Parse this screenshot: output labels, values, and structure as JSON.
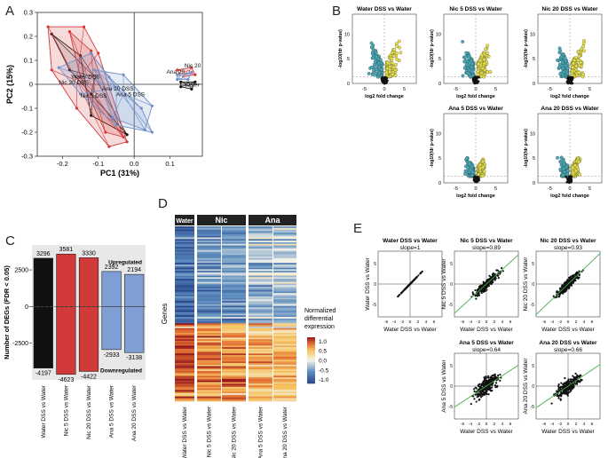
{
  "panels": {
    "A": "A",
    "B": "B",
    "C": "C",
    "D": "D",
    "E": "E"
  },
  "colors": {
    "red": "#d23a3a",
    "blue": "#6f8fc8",
    "black": "#111111",
    "cyan": "#46a9b8",
    "yellow": "#e6e04a",
    "green": "#3fae49"
  },
  "chart_data": [
    {
      "id": "A",
      "type": "scatter",
      "title": "",
      "xlabel": "PC1 (31%)",
      "ylabel": "PC2 (15%)",
      "xlim": [
        -0.27,
        0.19
      ],
      "ylim": [
        -0.3,
        0.3
      ],
      "xticks": [
        "-0.2",
        "-0.1",
        "0.0",
        "0.1"
      ],
      "xtick_values": [
        -0.2,
        -0.1,
        0.0,
        0.1
      ],
      "yticks": [
        "-0.3",
        "-0.2",
        "-0.1",
        "0",
        "0.1",
        "0.2",
        "0.3"
      ],
      "ytick_values": [
        -0.3,
        -0.2,
        -0.1,
        0,
        0.1,
        0.2,
        0.3
      ],
      "groups": [
        {
          "name": "Water DSS",
          "color": "black",
          "centroid": [
            -0.11,
            0.03
          ],
          "hull": [
            [
              -0.23,
              0.21
            ],
            [
              -0.18,
              0.06
            ],
            [
              -0.12,
              -0.04
            ],
            [
              -0.02,
              -0.21
            ],
            [
              -0.12,
              -0.13
            ],
            [
              -0.15,
              0.12
            ]
          ]
        },
        {
          "name": "Nic 20 DSS",
          "color": "red",
          "centroid": [
            -0.16,
            0.015
          ],
          "hull": [
            [
              -0.24,
              0.24
            ],
            [
              -0.14,
              0.24
            ],
            [
              -0.1,
              0.13
            ],
            [
              -0.02,
              -0.24
            ],
            [
              -0.07,
              -0.26
            ],
            [
              -0.16,
              -0.1
            ],
            [
              -0.23,
              0.06
            ]
          ]
        },
        {
          "name": "Nic 5 DSS",
          "color": "red",
          "centroid": [
            -0.11,
            -0.04
          ],
          "hull": [
            [
              -0.18,
              0.22
            ],
            [
              -0.12,
              0.14
            ],
            [
              -0.03,
              -0.22
            ],
            [
              -0.08,
              -0.2
            ],
            [
              -0.15,
              0.03
            ]
          ]
        },
        {
          "name": "Ana 20 DSS",
          "color": "blue",
          "centroid": [
            -0.05,
            -0.015
          ],
          "hull": [
            [
              -0.21,
              0.07
            ],
            [
              -0.12,
              0.13
            ],
            [
              -0.07,
              0.03
            ],
            [
              0.02,
              -0.1
            ],
            [
              0.05,
              -0.2
            ],
            [
              -0.05,
              -0.17
            ],
            [
              -0.15,
              -0.04
            ]
          ]
        },
        {
          "name": "Ana 5 DSS",
          "color": "blue",
          "centroid": [
            -0.03,
            -0.04
          ],
          "hull": [
            [
              -0.11,
              0.06
            ],
            [
              -0.03,
              0.04
            ],
            [
              0.05,
              -0.09
            ],
            [
              0.03,
              -0.19
            ],
            [
              -0.06,
              -0.14
            ]
          ]
        },
        {
          "name": "Nic 20",
          "color": "red",
          "centroid": [
            0.15,
            0.05
          ],
          "hull": [
            [
              0.12,
              0.06
            ],
            [
              0.16,
              0.07
            ],
            [
              0.17,
              0.04
            ],
            [
              0.13,
              0.03
            ]
          ]
        },
        {
          "name": "Ana 20",
          "color": "blue",
          "centroid": [
            0.13,
            0.03
          ],
          "hull": [
            [
              0.12,
              0.04
            ],
            [
              0.16,
              0.05
            ],
            [
              0.15,
              0.02
            ],
            [
              0.12,
              0.02
            ]
          ]
        },
        {
          "name": "Water",
          "color": "black",
          "centroid": [
            0.15,
            0.0
          ],
          "hull": [
            [
              0.13,
              0.01
            ],
            [
              0.17,
              0.01
            ],
            [
              0.16,
              -0.02
            ],
            [
              0.13,
              -0.01
            ]
          ]
        }
      ],
      "labels": [
        {
          "text": "Water DSS",
          "at": [
            -0.175,
            0.025
          ]
        },
        {
          "text": "Nic 20 DSS",
          "at": [
            -0.21,
            0.0
          ]
        },
        {
          "text": "Ana 20 DSS",
          "at": [
            -0.09,
            -0.025
          ]
        },
        {
          "text": "Ana 5 DSS",
          "at": [
            -0.05,
            -0.05
          ]
        },
        {
          "text": "Nic 5 DSS",
          "at": [
            -0.15,
            -0.055
          ]
        },
        {
          "text": "Nic 20",
          "at": [
            0.14,
            0.07
          ]
        },
        {
          "text": "Ana 20",
          "at": [
            0.09,
            0.045
          ]
        },
        {
          "text": "Water",
          "at": [
            0.14,
            -0.01
          ]
        }
      ]
    },
    {
      "id": "B",
      "type": "scatter",
      "xlabel": "log2 fold change",
      "ylabel": "-log10(fdr p-value)",
      "xlim": [
        -8,
        8
      ],
      "ylim": [
        0,
        14
      ],
      "xticks": [
        "-5",
        "0",
        "5"
      ],
      "xtick_values": [
        -5,
        0,
        5
      ],
      "yticks": [
        "0",
        "5",
        "10"
      ],
      "ytick_values": [
        0,
        5,
        10
      ],
      "threshold_y": 1.3,
      "plots": [
        {
          "title": "Water DSS vs Water",
          "spread": 1.0
        },
        {
          "title": "Nic 5 DSS vs Water",
          "spread": 1.0
        },
        {
          "title": "Nic 20 DSS vs Water",
          "spread": 1.0
        },
        {
          "title": "Ana 5 DSS vs Water",
          "spread": 0.7
        },
        {
          "title": "Ana 20 DSS vs Water",
          "spread": 0.75
        }
      ]
    },
    {
      "id": "C",
      "type": "bar",
      "ylabel": "Number of DEGs (FDR < 0.05)",
      "ylim": [
        -5000,
        4200
      ],
      "yticks": [
        "2500",
        "0",
        "-2500"
      ],
      "ytick_values": [
        2500,
        0,
        -2500
      ],
      "categories": [
        "Water DSS vs Water",
        "Nic 5 DSS vs Water",
        "Nic 20 DSS vs Water",
        "Ana 5 DSS vs Water",
        "Ana 20 DSS vs Water"
      ],
      "series": [
        {
          "name": "Upregulated",
          "values": [
            3296,
            3581,
            3330,
            2392,
            2194
          ]
        },
        {
          "name": "Downregulated",
          "values": [
            -4197,
            -4623,
            -4422,
            -2933,
            -3138
          ]
        }
      ],
      "bar_colors": [
        "#111111",
        "#d23a3a",
        "#d23a3a",
        "#7f9fd4",
        "#7f9fd4"
      ],
      "annotations": {
        "up": "Upregulated",
        "down": "Downregulated"
      }
    },
    {
      "id": "D",
      "type": "heatmap",
      "groups": [
        {
          "label": "Water",
          "columns": [
            "Water DSS vs Water"
          ]
        },
        {
          "label": "Nic",
          "columns": [
            "Nic 5 DSS vs Water",
            "Nic 20 DSS vs Water"
          ]
        },
        {
          "label": "Ana",
          "columns": [
            "Ana 5 DSS vs Water",
            "Ana 20 DSS vs Water"
          ]
        }
      ],
      "ylabel": "Genes",
      "legend_title": [
        "Normalized",
        "differential",
        "expression"
      ],
      "legend_ticks": [
        "1.0",
        "0.5",
        "0.0",
        "-0.5",
        "-1.0"
      ],
      "legend_tick_values": [
        1.0,
        0.5,
        0.0,
        -0.5,
        -1.0
      ],
      "vrange": [
        -1.2,
        1.2
      ],
      "blocks": [
        {
          "genes": "down-regulated block",
          "mean": [
            -0.9,
            -0.6,
            -0.55,
            -0.35,
            -0.3
          ],
          "fraction": 0.55
        },
        {
          "genes": "up-regulated block",
          "mean": [
            0.95,
            0.75,
            0.7,
            0.55,
            0.5
          ],
          "fraction": 0.45
        }
      ]
    },
    {
      "id": "E",
      "type": "scatter",
      "xlim": [
        -8,
        8
      ],
      "ylim": [
        -8,
        8
      ],
      "xticks": [
        "-6",
        "-4",
        "-2",
        "0",
        "2",
        "4",
        "6"
      ],
      "xtick_values": [
        -6,
        -4,
        -2,
        0,
        2,
        4,
        6
      ],
      "yticks": [
        "-5",
        "0",
        "5"
      ],
      "ytick_values": [
        -5,
        0,
        5
      ],
      "plots": [
        {
          "title": "Water DSS vs Water",
          "slope_label": "slope=1",
          "slope": 1.0,
          "xlabel": "Water DSS vs Water",
          "ylabel": "Water DSS vs Water"
        },
        {
          "title": "Nic 5 DSS vs Water",
          "slope_label": "slope=0.89",
          "slope": 0.89,
          "xlabel": "Water DSS vs Water",
          "ylabel": "Nic 5 DSS vs Water"
        },
        {
          "title": "Nic 20 DSS vs Water",
          "slope_label": "slope=0.93",
          "slope": 0.93,
          "xlabel": "Water DSS vs Water",
          "ylabel": "Nic 20 DSS vs Water"
        },
        {
          "title": "Ana 5 DSS vs Water",
          "slope_label": "slope=0.64",
          "slope": 0.64,
          "xlabel": "Water DSS vs Water",
          "ylabel": "Ana 5 DSS vs Water"
        },
        {
          "title": "Ana 20 DSS vs Water",
          "slope_label": "slope=0.66",
          "slope": 0.66,
          "xlabel": "Water DSS vs Water",
          "ylabel": "Ana 20 DSS vs Water"
        }
      ]
    }
  ]
}
